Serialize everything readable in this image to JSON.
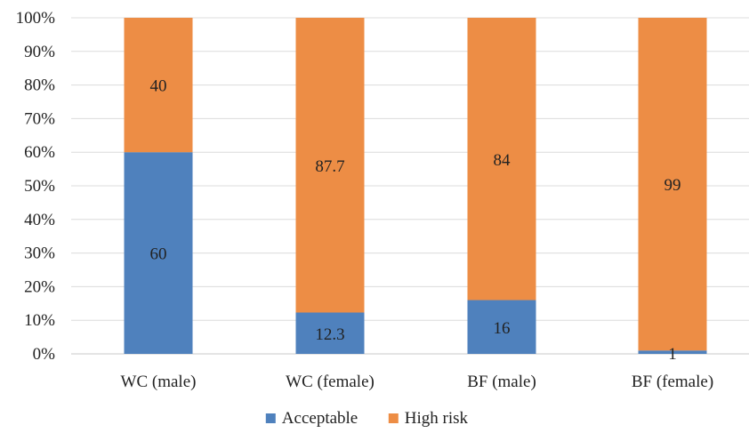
{
  "chart_data": {
    "type": "bar",
    "stacked": true,
    "percent_stacked": true,
    "categories": [
      "WC (male)",
      "WC (female)",
      "BF (male)",
      "BF (female)"
    ],
    "series": [
      {
        "name": "Acceptable",
        "color": "#4f81bd",
        "values": [
          60,
          12.3,
          16,
          1
        ],
        "labels": [
          "60",
          "12.3",
          "16",
          "1"
        ]
      },
      {
        "name": "High risk",
        "color": "#ed8d45",
        "values": [
          40,
          87.7,
          84,
          99
        ],
        "labels": [
          "40",
          "87.7",
          "84",
          "99"
        ]
      }
    ],
    "ylim": [
      0,
      100
    ],
    "yticks": [
      "0%",
      "10%",
      "20%",
      "30%",
      "40%",
      "50%",
      "60%",
      "70%",
      "80%",
      "90%",
      "100%"
    ],
    "grid": true,
    "legend": "bottom-center"
  }
}
